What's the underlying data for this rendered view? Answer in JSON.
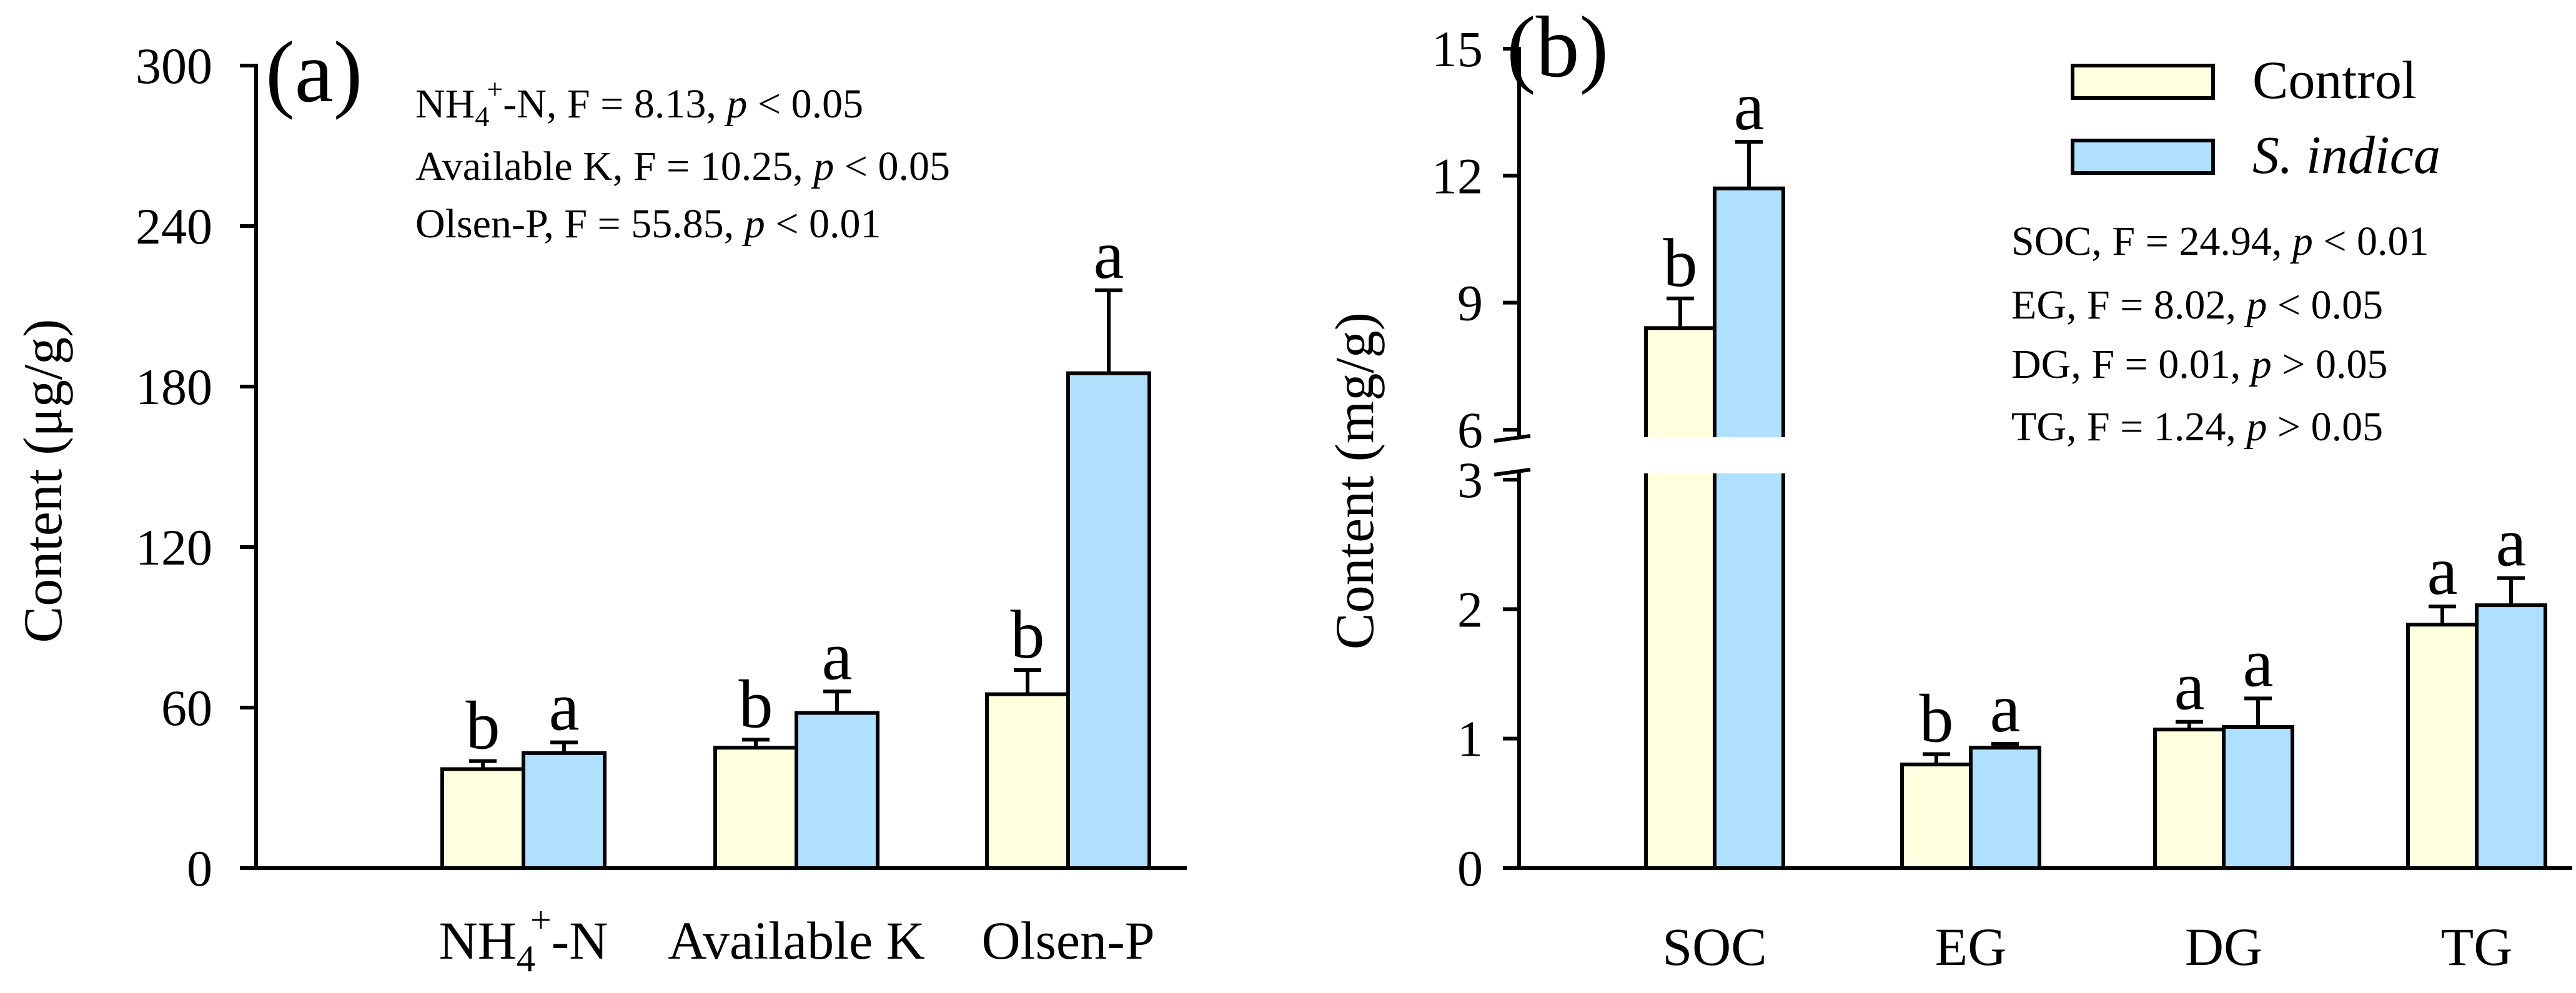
{
  "colors": {
    "control": "#ffffe0",
    "sindica": "#b0e0ff",
    "stroke": "#000000"
  },
  "chart_data": [
    {
      "panel": "(a)",
      "type": "bar",
      "ylabel": "Content (μg/g)",
      "ylim": [
        0,
        300
      ],
      "yticks": [
        "0",
        "60",
        "120",
        "180",
        "240",
        "300"
      ],
      "categories": [
        {
          "base": "NH",
          "sub": "4",
          "sup": "+",
          "tail": "-N"
        },
        {
          "base": "Available K"
        },
        {
          "base": "Olsen-P"
        }
      ],
      "series": [
        {
          "name": "Control",
          "values": [
            37,
            45,
            65
          ],
          "errors": [
            3,
            3,
            9
          ],
          "letters": [
            "b",
            "b",
            "b"
          ]
        },
        {
          "name": "S. indica",
          "values": [
            43,
            58,
            185
          ],
          "errors": [
            4,
            8,
            31
          ],
          "letters": [
            "a",
            "a",
            "a"
          ]
        }
      ],
      "stats": [
        {
          "pre": "NH",
          "sub": "4",
          "sup": "+",
          "mid": "-N, F = 8.13, ",
          "p": "p",
          "post": " < 0.05"
        },
        {
          "pre": "Available K, F = 10.25, ",
          "p": "p",
          "post": " < 0.05"
        },
        {
          "pre": "Olsen-P, F = 55.85, ",
          "p": "p",
          "post": " < 0.01"
        }
      ]
    },
    {
      "panel": "(b)",
      "type": "bar",
      "ylabel": "Content (mg/g)",
      "axis_break": {
        "lower": [
          0,
          3
        ],
        "upper": [
          6,
          15
        ]
      },
      "yticks_lower": [
        "0",
        "1",
        "2",
        "3"
      ],
      "yticks_upper": [
        "6",
        "9",
        "12",
        "15"
      ],
      "categories": [
        "SOC",
        "EG",
        "DG",
        "TG"
      ],
      "series": [
        {
          "name": "Control",
          "values": [
            8.4,
            0.8,
            1.07,
            1.88
          ],
          "errors": [
            0.7,
            0.08,
            0.06,
            0.14
          ],
          "letters": [
            "b",
            "b",
            "a",
            "a"
          ]
        },
        {
          "name": "S. indica",
          "values": [
            11.7,
            0.93,
            1.09,
            2.03
          ],
          "errors": [
            1.1,
            0.03,
            0.22,
            0.21
          ],
          "letters": [
            "a",
            "a",
            "a",
            "a"
          ]
        }
      ],
      "legend": [
        {
          "label": "Control",
          "italic": false
        },
        {
          "label": "S. indica",
          "italic": true
        }
      ],
      "stats": [
        {
          "pre": "SOC, F = 24.94, ",
          "p": "p",
          "post": " < 0.01"
        },
        {
          "pre": "EG, F = 8.02, ",
          "p": "p",
          "post": " < 0.05"
        },
        {
          "pre": "DG, F = 0.01, ",
          "p": "p",
          "post": " > 0.05"
        },
        {
          "pre": "TG, F = 1.24, ",
          "p": "p",
          "post": " > 0.05"
        }
      ]
    }
  ]
}
